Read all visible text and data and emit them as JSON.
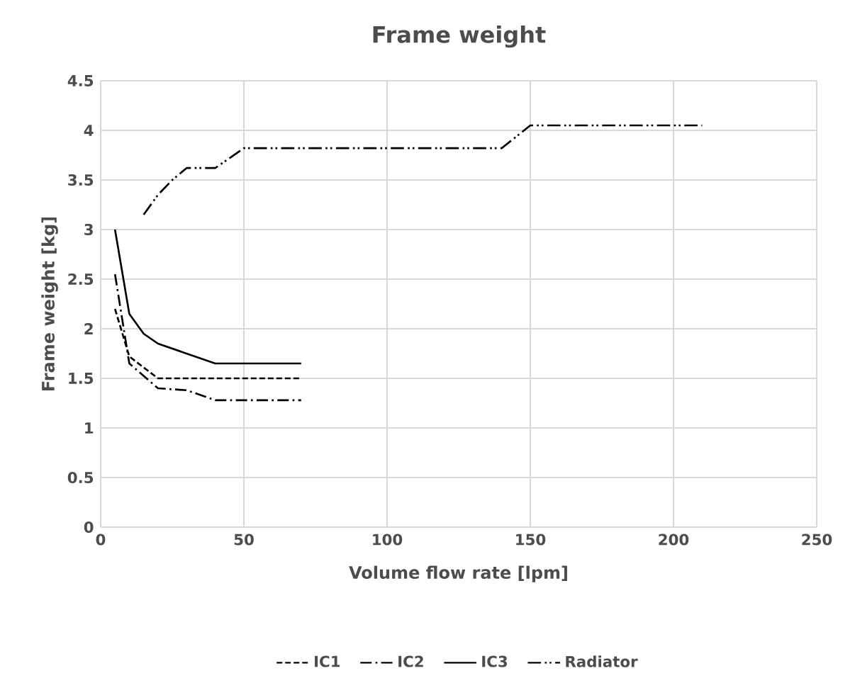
{
  "chart_data": {
    "type": "line",
    "title": "Frame weight",
    "xlabel": "Volume flow rate [lpm]",
    "ylabel": "Frame weight [kg]",
    "xlim": [
      0,
      250
    ],
    "xticks": [
      0,
      50,
      100,
      150,
      200,
      250
    ],
    "ylim": [
      0,
      4.5
    ],
    "yticks": [
      0,
      0.5,
      1,
      1.5,
      2,
      2.5,
      3,
      3.5,
      4,
      4.5
    ],
    "grid": true,
    "legend": "bottom",
    "marker": "none",
    "series": [
      {
        "name": "IC1",
        "color": "#000000",
        "line_style": "dashed",
        "x": [
          5,
          10,
          20,
          70
        ],
        "values": [
          2.2,
          1.72,
          1.5,
          1.5
        ]
      },
      {
        "name": "IC2",
        "color": "#000000",
        "line_style": "dashdot",
        "x": [
          5,
          10,
          20,
          30,
          40,
          70
        ],
        "values": [
          2.55,
          1.65,
          1.4,
          1.38,
          1.28,
          1.28
        ]
      },
      {
        "name": "IC3",
        "color": "#000000",
        "line_style": "solid",
        "x": [
          5,
          10,
          15,
          20,
          40,
          70
        ],
        "values": [
          3.0,
          2.15,
          1.95,
          1.85,
          1.65,
          1.65
        ]
      },
      {
        "name": "Radiator",
        "color": "#000000",
        "line_style": "dashdotdot",
        "x": [
          15,
          20,
          25,
          30,
          40,
          50,
          140,
          150,
          210
        ],
        "values": [
          3.15,
          3.35,
          3.5,
          3.62,
          3.62,
          3.82,
          3.82,
          4.05,
          4.05
        ]
      }
    ]
  }
}
